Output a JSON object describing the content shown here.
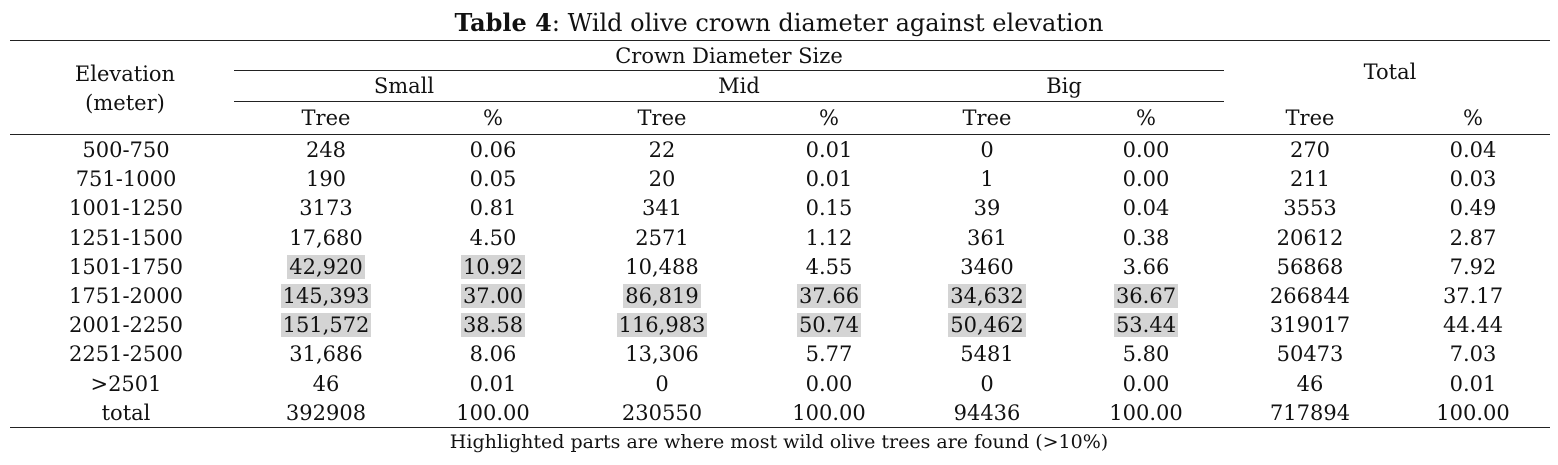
{
  "caption": {
    "label": "Table 4",
    "text": ": Wild olive crown diameter against elevation"
  },
  "header": {
    "elevation": [
      "Elevation",
      "(meter)"
    ],
    "group": "Crown Diameter Size",
    "total": "Total",
    "sizes": [
      "Small",
      "Mid",
      "Big"
    ],
    "sub": [
      "Tree",
      "%",
      "Tree",
      "%",
      "Tree",
      "%",
      "Tree",
      "%"
    ]
  },
  "rows": [
    {
      "elevation": "500-750",
      "cells": [
        "248",
        "0.06",
        "22",
        "0.01",
        "0",
        "0.00",
        "270",
        "0.04"
      ],
      "highlight": [
        false,
        false,
        false,
        false,
        false,
        false,
        false,
        false
      ]
    },
    {
      "elevation": "751-1000",
      "cells": [
        "190",
        "0.05",
        "20",
        "0.01",
        "1",
        "0.00",
        "211",
        "0.03"
      ],
      "highlight": [
        false,
        false,
        false,
        false,
        false,
        false,
        false,
        false
      ]
    },
    {
      "elevation": "1001-1250",
      "cells": [
        "3173",
        "0.81",
        "341",
        "0.15",
        "39",
        "0.04",
        "3553",
        "0.49"
      ],
      "highlight": [
        false,
        false,
        false,
        false,
        false,
        false,
        false,
        false
      ]
    },
    {
      "elevation": "1251-1500",
      "cells": [
        "17,680",
        "4.50",
        "2571",
        "1.12",
        "361",
        "0.38",
        "20612",
        "2.87"
      ],
      "highlight": [
        false,
        false,
        false,
        false,
        false,
        false,
        false,
        false
      ]
    },
    {
      "elevation": "1501-1750",
      "cells": [
        "42,920",
        "10.92",
        "10,488",
        "4.55",
        "3460",
        "3.66",
        "56868",
        "7.92"
      ],
      "highlight": [
        true,
        true,
        false,
        false,
        false,
        false,
        false,
        false
      ]
    },
    {
      "elevation": "1751-2000",
      "cells": [
        "145,393",
        "37.00",
        "86,819",
        "37.66",
        "34,632",
        "36.67",
        "266844",
        "37.17"
      ],
      "highlight": [
        true,
        true,
        true,
        true,
        true,
        true,
        false,
        false
      ]
    },
    {
      "elevation": "2001-2250",
      "cells": [
        "151,572",
        "38.58",
        "116,983",
        "50.74",
        "50,462",
        "53.44",
        "319017",
        "44.44"
      ],
      "highlight": [
        true,
        true,
        true,
        true,
        true,
        true,
        false,
        false
      ]
    },
    {
      "elevation": "2251-2500",
      "cells": [
        "31,686",
        "8.06",
        "13,306",
        "5.77",
        "5481",
        "5.80",
        "50473",
        "7.03"
      ],
      "highlight": [
        false,
        false,
        false,
        false,
        false,
        false,
        false,
        false
      ]
    },
    {
      "elevation": ">2501",
      "cells": [
        "46",
        "0.01",
        "0",
        "0.00",
        "0",
        "0.00",
        "46",
        "0.01"
      ],
      "highlight": [
        false,
        false,
        false,
        false,
        false,
        false,
        false,
        false
      ]
    },
    {
      "elevation": "total",
      "cells": [
        "392908",
        "100.00",
        "230550",
        "100.00",
        "94436",
        "100.00",
        "717894",
        "100.00"
      ],
      "highlight": [
        false,
        false,
        false,
        false,
        false,
        false,
        false,
        false
      ]
    }
  ],
  "footnote": "Highlighted parts are where most wild olive trees are found (>10%)"
}
